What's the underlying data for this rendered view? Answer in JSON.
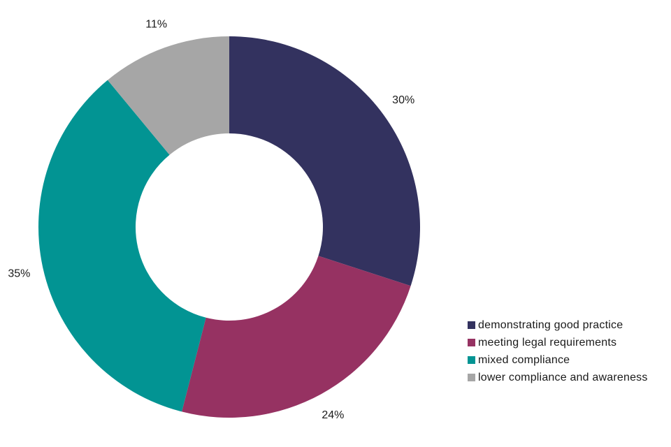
{
  "chart_data": {
    "type": "pie",
    "donut": true,
    "title": "",
    "legend_position": "bottom-right",
    "slices": [
      {
        "name": "demonstrating good practice",
        "value": 30,
        "label": "30%",
        "color": "#33325f"
      },
      {
        "name": "meeting legal requirements",
        "value": 24,
        "label": "24%",
        "color": "#963262"
      },
      {
        "name": "mixed compliance",
        "value": 35,
        "label": "35%",
        "color": "#029493"
      },
      {
        "name": "lower compliance and awareness",
        "value": 11,
        "label": "11%",
        "color": "#a6a6a6"
      }
    ]
  }
}
